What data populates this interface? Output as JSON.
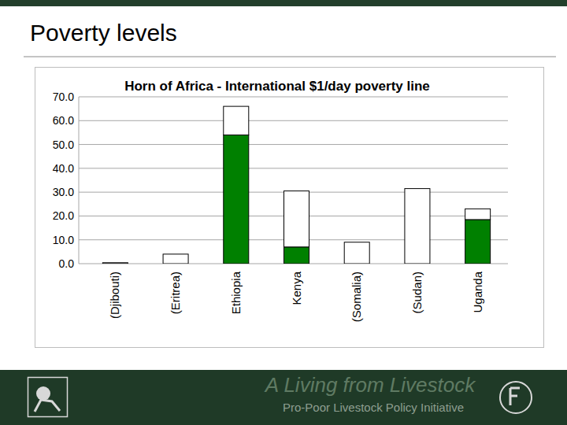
{
  "slide": {
    "title": "Poverty levels",
    "footer": {
      "title": "A Living from Livestock",
      "subtitle": "Pro-Poor Livestock Policy Initiative"
    }
  },
  "chart_data": {
    "type": "bar",
    "title": "Horn of Africa - International $1/day poverty line",
    "categories": [
      "(Djibouti)",
      "(Eritrea)",
      "Ethiopia",
      "Kenya",
      "(Somalia)",
      "(Sudan)",
      "Uganda"
    ],
    "series": [
      {
        "color": "#008000",
        "values": [
          0,
          0,
          54,
          7,
          0,
          0,
          18.5
        ]
      },
      {
        "color": "#ffffff",
        "values": [
          0.4,
          4,
          12,
          23.5,
          9,
          31.5,
          4.5
        ]
      }
    ],
    "stacked": true,
    "ylim": [
      0,
      70
    ],
    "yticks": [
      {
        "value": 0,
        "label": "0.0"
      },
      {
        "value": 10,
        "label": "10.0"
      },
      {
        "value": 20,
        "label": "20.0"
      },
      {
        "value": 30,
        "label": "30.0"
      },
      {
        "value": 40,
        "label": "40.0"
      },
      {
        "value": 50,
        "label": "50.0"
      },
      {
        "value": 60,
        "label": "60.0"
      },
      {
        "value": 70,
        "label": "70.0"
      }
    ],
    "grid": true
  }
}
